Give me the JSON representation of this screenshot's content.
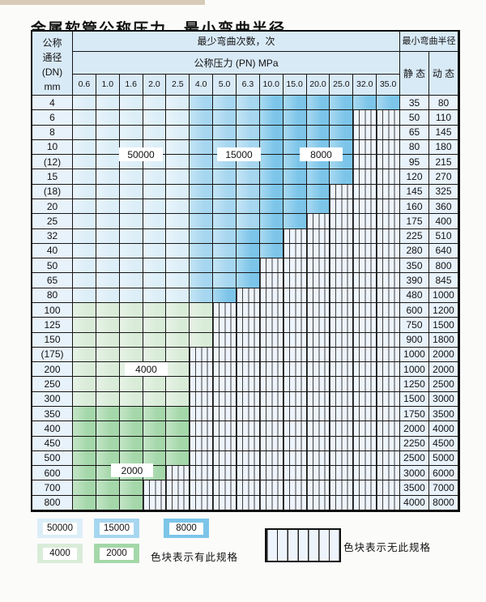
{
  "title": "金属软管公称压力、最小弯曲半径",
  "table": {
    "corner_lines": [
      "公称",
      "通径",
      "(DN)",
      "mm"
    ],
    "bend_cycles_header": "最少弯曲次数，次",
    "pressure_header": "公称压力 (PN) MPa",
    "radius_header": "最小弯曲半径",
    "static_header": "静 态",
    "dynamic_header": "动 态",
    "pressures": [
      "0.6",
      "1.0",
      "1.6",
      "2.0",
      "2.5",
      "4.0",
      "5.0",
      "6.3",
      "10.0",
      "15.0",
      "20.0",
      "25.0",
      "32.0",
      "35.0"
    ],
    "rows": [
      {
        "dn": "4",
        "static": "35",
        "dynamic": "80",
        "spans": [
          [
            "z50",
            0,
            4
          ],
          [
            "z15",
            5,
            7
          ],
          [
            "z8",
            8,
            13
          ]
        ]
      },
      {
        "dn": "6",
        "static": "50",
        "dynamic": "110",
        "spans": [
          [
            "z50",
            0,
            4
          ],
          [
            "z15",
            5,
            7
          ],
          [
            "z8",
            8,
            11
          ]
        ]
      },
      {
        "dn": "8",
        "static": "65",
        "dynamic": "145",
        "spans": [
          [
            "z50",
            0,
            4
          ],
          [
            "z15",
            5,
            7
          ],
          [
            "z8",
            8,
            11
          ]
        ]
      },
      {
        "dn": "10",
        "static": "80",
        "dynamic": "180",
        "spans": [
          [
            "z50",
            0,
            4
          ],
          [
            "z15",
            5,
            7
          ],
          [
            "z8",
            8,
            11
          ]
        ]
      },
      {
        "dn": "(12)",
        "static": "95",
        "dynamic": "215",
        "spans": [
          [
            "z50",
            0,
            4
          ],
          [
            "z15",
            5,
            7
          ],
          [
            "z8",
            8,
            11
          ]
        ]
      },
      {
        "dn": "15",
        "static": "120",
        "dynamic": "270",
        "spans": [
          [
            "z50",
            0,
            4
          ],
          [
            "z15",
            5,
            7
          ],
          [
            "z8",
            8,
            11
          ]
        ]
      },
      {
        "dn": "(18)",
        "static": "145",
        "dynamic": "325",
        "spans": [
          [
            "z50",
            0,
            4
          ],
          [
            "z15",
            5,
            7
          ],
          [
            "z8",
            8,
            10
          ]
        ]
      },
      {
        "dn": "20",
        "static": "160",
        "dynamic": "360",
        "spans": [
          [
            "z50",
            0,
            4
          ],
          [
            "z15",
            5,
            7
          ],
          [
            "z8",
            8,
            10
          ]
        ]
      },
      {
        "dn": "25",
        "static": "175",
        "dynamic": "400",
        "spans": [
          [
            "z50",
            0,
            4
          ],
          [
            "z15",
            5,
            7
          ],
          [
            "z8",
            8,
            9
          ]
        ]
      },
      {
        "dn": "32",
        "static": "225",
        "dynamic": "510",
        "spans": [
          [
            "z50",
            0,
            4
          ],
          [
            "z15",
            5,
            6
          ],
          [
            "z8",
            7,
            8
          ]
        ]
      },
      {
        "dn": "40",
        "static": "280",
        "dynamic": "640",
        "spans": [
          [
            "z50",
            0,
            4
          ],
          [
            "z15",
            5,
            6
          ],
          [
            "z8",
            7,
            8
          ]
        ]
      },
      {
        "dn": "50",
        "static": "350",
        "dynamic": "800",
        "spans": [
          [
            "z50",
            0,
            4
          ],
          [
            "z15",
            5,
            6
          ],
          [
            "z8",
            7,
            7
          ]
        ]
      },
      {
        "dn": "65",
        "static": "390",
        "dynamic": "845",
        "spans": [
          [
            "z50",
            0,
            4
          ],
          [
            "z15",
            5,
            6
          ],
          [
            "z8",
            7,
            7
          ]
        ]
      },
      {
        "dn": "80",
        "static": "480",
        "dynamic": "1000",
        "spans": [
          [
            "z50",
            0,
            4
          ],
          [
            "z15",
            5,
            5
          ],
          [
            "z8",
            6,
            6
          ]
        ]
      },
      {
        "dn": "100",
        "static": "600",
        "dynamic": "1200",
        "spans": [
          [
            "z40",
            0,
            5
          ]
        ]
      },
      {
        "dn": "125",
        "static": "750",
        "dynamic": "1500",
        "spans": [
          [
            "z40",
            0,
            5
          ]
        ]
      },
      {
        "dn": "150",
        "static": "900",
        "dynamic": "1800",
        "spans": [
          [
            "z40",
            0,
            5
          ]
        ]
      },
      {
        "dn": "(175)",
        "static": "1000",
        "dynamic": "2000",
        "spans": [
          [
            "z40",
            0,
            4
          ]
        ]
      },
      {
        "dn": "200",
        "static": "1000",
        "dynamic": "2000",
        "spans": [
          [
            "z40",
            0,
            4
          ]
        ]
      },
      {
        "dn": "250",
        "static": "1250",
        "dynamic": "2500",
        "spans": [
          [
            "z40",
            0,
            4
          ]
        ]
      },
      {
        "dn": "300",
        "static": "1500",
        "dynamic": "3000",
        "spans": [
          [
            "z40",
            0,
            4
          ]
        ]
      },
      {
        "dn": "350",
        "static": "1750",
        "dynamic": "3500",
        "spans": [
          [
            "z20",
            0,
            4
          ]
        ]
      },
      {
        "dn": "400",
        "static": "2000",
        "dynamic": "4000",
        "spans": [
          [
            "z20",
            0,
            4
          ]
        ]
      },
      {
        "dn": "450",
        "static": "2250",
        "dynamic": "4500",
        "spans": [
          [
            "z20",
            0,
            4
          ]
        ]
      },
      {
        "dn": "500",
        "static": "2500",
        "dynamic": "5000",
        "spans": [
          [
            "z20",
            0,
            4
          ]
        ]
      },
      {
        "dn": "600",
        "static": "3000",
        "dynamic": "6000",
        "spans": [
          [
            "z20",
            0,
            3
          ]
        ]
      },
      {
        "dn": "700",
        "static": "3500",
        "dynamic": "7000",
        "spans": [
          [
            "z20",
            0,
            2
          ]
        ]
      },
      {
        "dn": "800",
        "static": "4000",
        "dynamic": "8000",
        "spans": [
          [
            "z20",
            0,
            2
          ]
        ]
      }
    ]
  },
  "zones": {
    "z50": {
      "label": "50000",
      "color": "#dceef8"
    },
    "z15": {
      "label": "15000",
      "color": "#a6d6f0"
    },
    "z8": {
      "label": "8000",
      "color": "#7cc5e9"
    },
    "z40": {
      "label": "4000",
      "color": "#d9ecd8"
    },
    "z20": {
      "label": "2000",
      "color": "#a4d7a9"
    }
  },
  "legend": {
    "order": [
      "z50",
      "z15",
      "z8",
      "z40",
      "z20"
    ],
    "have_label": "色块表示有此规格",
    "none_label": "色块表示无此规格"
  },
  "colors": {
    "header_bg": "#d9eaf7",
    "side_bg": "#e8f2fb",
    "hatch_bg": "#eef4fb",
    "grid": "#161616"
  }
}
